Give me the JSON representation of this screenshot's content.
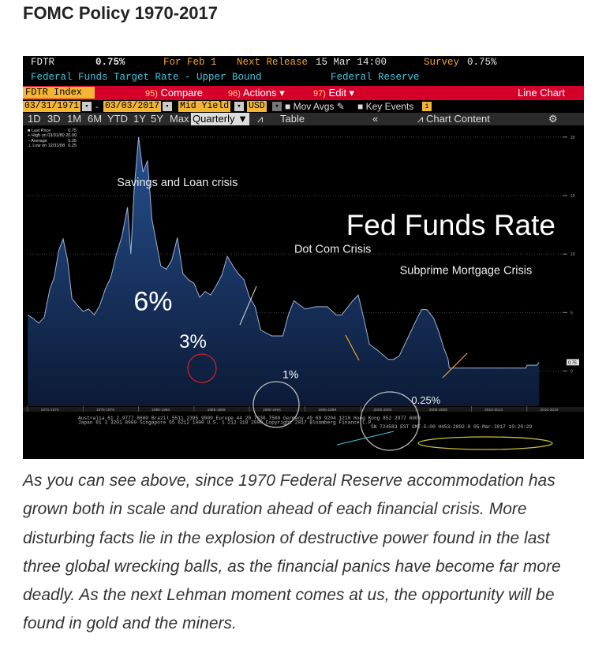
{
  "page_title": "FOMC Policy 1970-2017",
  "terminal": {
    "ticker": "FDTR",
    "last_value": "0.75%",
    "for_date": "For Feb 1",
    "next_release_label": "Next Release",
    "next_release": "15 Mar 14:00",
    "survey_label": "Survey",
    "survey": "0.75%",
    "description": "Federal Funds Target Rate - Upper Bound",
    "source": "Federal Reserve",
    "index_field": "FDTR Index",
    "compare": "Compare",
    "compare_num": "95)",
    "actions": "Actions",
    "actions_num": "96)",
    "edit": "Edit",
    "edit_num": "97)",
    "line_chart": "Line Chart",
    "start_date": "03/31/1971",
    "end_date": "03/03/2017",
    "dash": "-",
    "mid_yield": "Mid Yield",
    "currency": "USD",
    "mov_avgs": "Mov Avgs",
    "key_events": "Key Events",
    "ranges": [
      "1D",
      "3D",
      "1M",
      "6M",
      "YTD",
      "1Y",
      "5Y",
      "Max"
    ],
    "period": "Quarterly",
    "table": "Table",
    "back": "«",
    "chart_content": "Chart Content",
    "legend": [
      {
        "label": "Last Price",
        "value": "0.75"
      },
      {
        "label": "High on 03/31/80",
        "value": "20.00"
      },
      {
        "label": "Average",
        "value": "5.35"
      },
      {
        "label": "Low on 12/31/08",
        "value": "0.25"
      }
    ],
    "footer": [
      "Australia 61 2 9777 8600 Brazil 5511 2395 9000 Europe 44 20 7330 7500 Germany 49 69 9204 1210 Hong Kong 852 2977 6000",
      "Japan 81 3 3201 8900          Singapore 65 6212 1000          U.S. 1 212 318 2000          Copyright 2017 Bloomberg Finance L.P.",
      "SN 724583 EST  GMT-5:00 H453-2002-0 05-Mar-2017 10:20:29"
    ]
  },
  "chart_data": {
    "type": "area",
    "title": "Fed Funds Rate",
    "ylim": [
      -3,
      21
    ],
    "y_ticks": [
      0,
      5,
      10,
      15,
      20
    ],
    "x_tick_labels": [
      "1971-1974",
      "1975-1979",
      "1980-1984",
      "1985-1989",
      "1990-1994",
      "1995-1999",
      "2000-2004",
      "2005-2009",
      "2010-2014",
      "2015-2019"
    ],
    "x": [
      1971,
      1971.5,
      1972,
      1972.5,
      1973,
      1973.4,
      1973.8,
      1974.2,
      1974.6,
      1975,
      1975.5,
      1976,
      1976.5,
      1977,
      1977.5,
      1978,
      1978.5,
      1979,
      1979.5,
      1980,
      1980.3,
      1980.6,
      1981,
      1981.4,
      1981.8,
      1982.2,
      1982.6,
      1983,
      1983.5,
      1984,
      1984.5,
      1985,
      1985.5,
      1986,
      1986.5,
      1987,
      1987.5,
      1988,
      1988.5,
      1989,
      1989.5,
      1990,
      1990.5,
      1991,
      1991.5,
      1992,
      1993,
      1994,
      1994.5,
      1995,
      1996,
      1997,
      1998,
      1998.8,
      1999.3,
      1999.8,
      2000.3,
      2000.8,
      2001.3,
      2001.8,
      2002.5,
      2003.5,
      2004,
      2004.5,
      2005,
      2005.5,
      2006,
      2006.5,
      2007,
      2007.6,
      2008,
      2008.5,
      2008.9,
      2009,
      2010,
      2012,
      2014,
      2015.9,
      2016,
      2016.9,
      2017.1
    ],
    "y": [
      4.8,
      4.5,
      4.1,
      4.6,
      7,
      8,
      10.3,
      11.3,
      9.5,
      6.2,
      5.6,
      5.1,
      5.3,
      4.8,
      5.6,
      7,
      8,
      10,
      11.5,
      14,
      10,
      15.5,
      20,
      17,
      18,
      13,
      11,
      9,
      8.7,
      9.5,
      11.4,
      8.3,
      7.8,
      7.5,
      6.3,
      6.8,
      6.5,
      7.3,
      8.2,
      9.8,
      9,
      8.3,
      7.8,
      6.3,
      5.5,
      3.5,
      3.0,
      3.0,
      4.8,
      6.0,
      5.3,
      5.5,
      5.5,
      4.8,
      4.8,
      5.4,
      6.0,
      6.5,
      4.5,
      2.3,
      1.8,
      1.0,
      1.0,
      1.3,
      2.3,
      3.3,
      4.3,
      5.25,
      5.25,
      4.5,
      3.5,
      2.0,
      1.0,
      0.25,
      0.25,
      0.25,
      0.25,
      0.25,
      0.5,
      0.5,
      0.75
    ],
    "annotations": [
      {
        "text": "Savings and Loan crisis",
        "x": 1984.5,
        "y": 15.8
      },
      {
        "text": "Dot Com Crisis",
        "x": 1998.5,
        "y": 10.1
      },
      {
        "text": "Subprime Mortgage Crisis",
        "x": 2010.5,
        "y": 8.3
      },
      {
        "text": "6%",
        "x": 1982.3,
        "y": 5.2
      },
      {
        "text": "3%",
        "x": 1985.9,
        "y": 2.0
      },
      {
        "text": "1%",
        "x": 1994.7,
        "y": -0.6
      },
      {
        "text": "0.25%",
        "x": 2006.9,
        "y": -2.8
      }
    ],
    "series": [
      {
        "name": "FDTR Index",
        "color": "#1e3a6e"
      }
    ]
  },
  "prose": "As you can see above, since 1970 Federal Reserve accommodation has grown both in scale and duration ahead of each financial crisis.  More disturbing facts lie in the explosion of destructive power found in the last three global wrecking balls, as the financial panics have become far more deadly.  As the next Lehman moment comes at us, the opportunity will be found in gold and the miners."
}
